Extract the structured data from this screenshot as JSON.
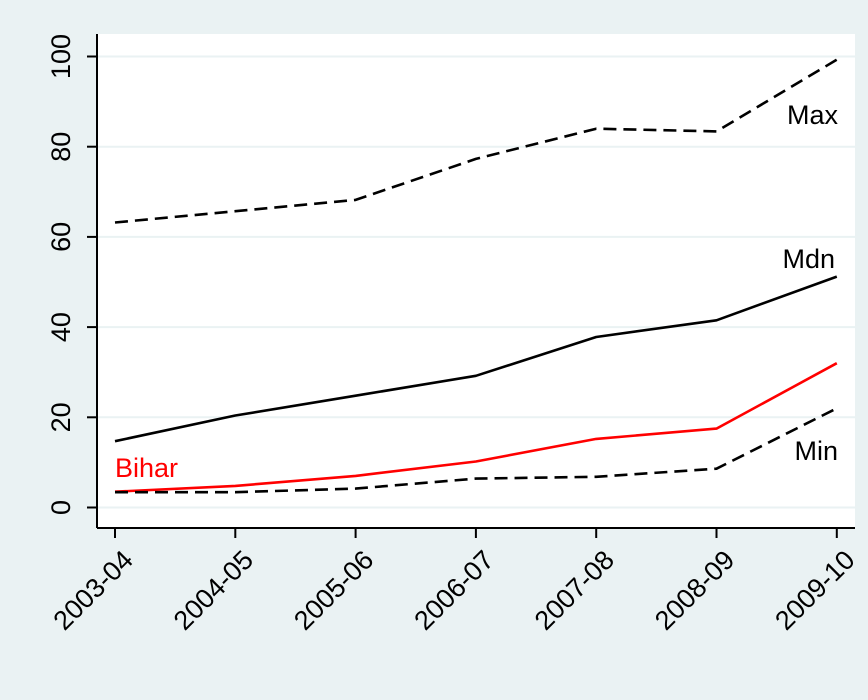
{
  "chart_data": {
    "type": "line",
    "title": "",
    "xlabel": "",
    "ylabel": "",
    "categories": [
      "2003-04",
      "2004-05",
      "2005-06",
      "2006-07",
      "2007-08",
      "2008-09",
      "2009-10"
    ],
    "ylim": [
      0,
      100
    ],
    "yticks": [
      0,
      20,
      40,
      60,
      80,
      100
    ],
    "grid": true,
    "series": [
      {
        "name": "Max",
        "values": [
          63.2,
          65.7,
          68.2,
          77.3,
          84.0,
          83.4,
          99.3
        ],
        "color": "#000000",
        "dash": "dashed"
      },
      {
        "name": "Mdn",
        "values": [
          14.7,
          20.4,
          24.8,
          29.2,
          37.8,
          41.5,
          51.2
        ],
        "color": "#000000",
        "dash": "solid"
      },
      {
        "name": "Bihar",
        "values": [
          3.5,
          4.8,
          7.0,
          10.2,
          15.2,
          17.5,
          32.0
        ],
        "color": "#ff0000",
        "dash": "solid"
      },
      {
        "name": "Min",
        "values": [
          3.4,
          3.4,
          4.2,
          6.4,
          6.8,
          8.6,
          22.0
        ],
        "color": "#000000",
        "dash": "dashed"
      }
    ]
  },
  "colors": {
    "background": "#eaf2f3",
    "plot_area": "#ffffff",
    "grid": "#eaf2f3",
    "axis": "#000000"
  }
}
